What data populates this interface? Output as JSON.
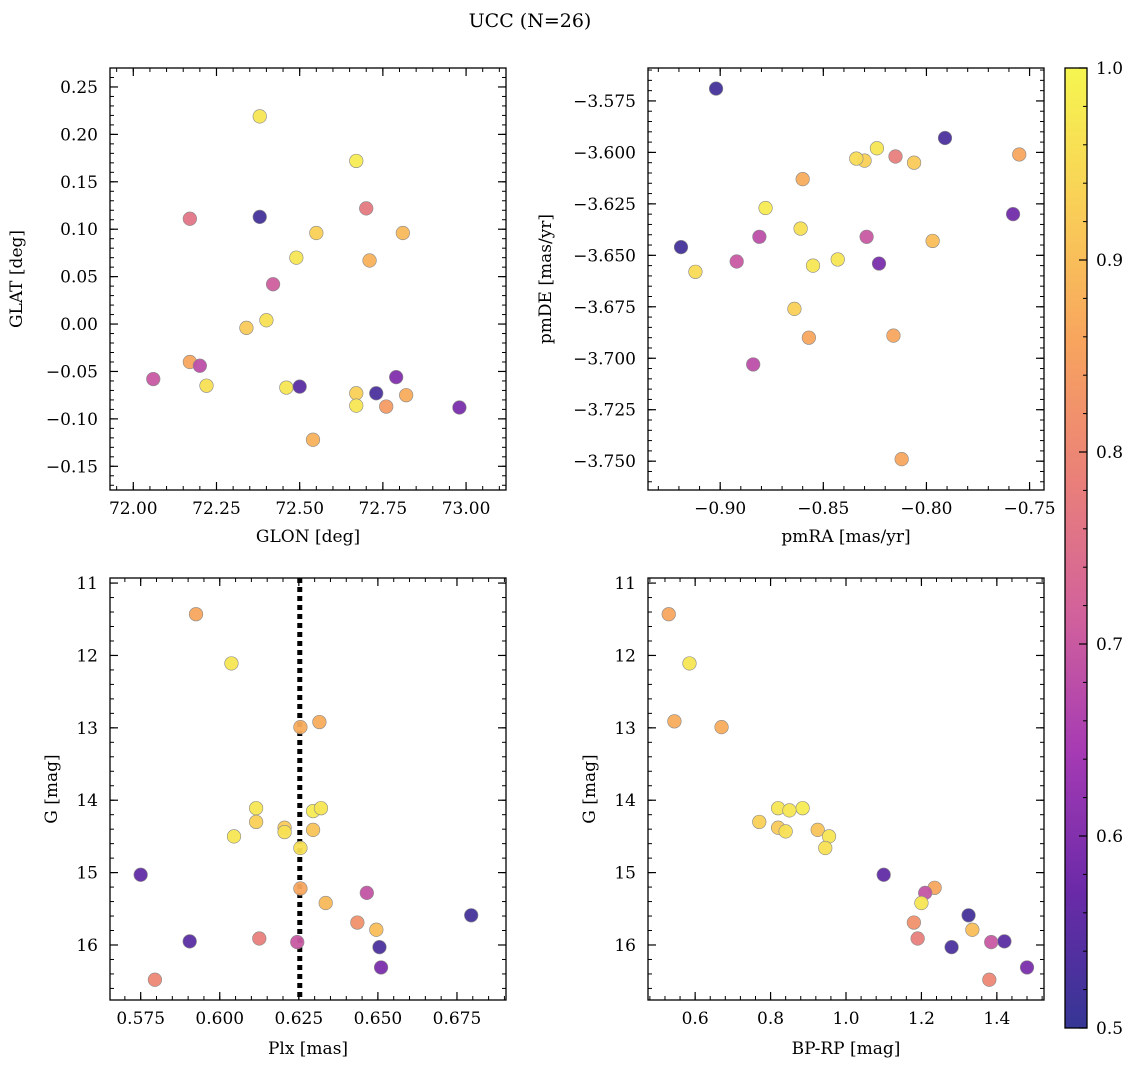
{
  "title": "UCC (N=26)",
  "colorbar": {
    "range": [
      0.5,
      1.0
    ],
    "ticks": [
      0.5,
      0.6,
      0.7,
      0.8,
      0.9,
      1.0
    ],
    "tick_labels": [
      "0.5",
      "0.6",
      "0.7",
      "0.8",
      "0.9",
      "1.0"
    ],
    "colormap": "plasma",
    "stops": [
      "#353695",
      "#6b2aa8",
      "#a53ab4",
      "#d1619c",
      "#ea8079",
      "#f8a45e",
      "#f9cf57",
      "#f6f650"
    ]
  },
  "chart_data": [
    {
      "type": "scatter",
      "name": "glon_glat",
      "xlabel": "GLON [deg]",
      "ylabel": "GLAT [deg]",
      "xlim": [
        71.93,
        73.12
      ],
      "ylim": [
        -0.175,
        0.27
      ],
      "y_inverted": false,
      "xticks": [
        72.0,
        72.25,
        72.5,
        72.75,
        73.0
      ],
      "xtick_labels": [
        "72.00",
        "72.25",
        "72.50",
        "72.75",
        "73.00"
      ],
      "yticks": [
        -0.15,
        -0.1,
        -0.05,
        0.0,
        0.05,
        0.1,
        0.15,
        0.2,
        0.25
      ],
      "ytick_labels": [
        "−0.15",
        "−0.10",
        "−0.05",
        "0.00",
        "0.05",
        "0.10",
        "0.15",
        "0.20",
        "0.25"
      ],
      "points": [
        {
          "x": 72.38,
          "y": 0.219,
          "c": 0.97
        },
        {
          "x": 72.67,
          "y": 0.172,
          "c": 0.98
        },
        {
          "x": 72.17,
          "y": 0.111,
          "c": 0.76
        },
        {
          "x": 72.38,
          "y": 0.113,
          "c": 0.52
        },
        {
          "x": 72.7,
          "y": 0.122,
          "c": 0.77
        },
        {
          "x": 72.55,
          "y": 0.096,
          "c": 0.93
        },
        {
          "x": 72.81,
          "y": 0.096,
          "c": 0.89
        },
        {
          "x": 72.49,
          "y": 0.07,
          "c": 0.97
        },
        {
          "x": 72.71,
          "y": 0.067,
          "c": 0.88
        },
        {
          "x": 72.42,
          "y": 0.042,
          "c": 0.71
        },
        {
          "x": 72.4,
          "y": 0.004,
          "c": 0.96
        },
        {
          "x": 72.34,
          "y": -0.004,
          "c": 0.92
        },
        {
          "x": 72.06,
          "y": -0.058,
          "c": 0.7
        },
        {
          "x": 72.17,
          "y": -0.04,
          "c": 0.86
        },
        {
          "x": 72.2,
          "y": -0.044,
          "c": 0.68
        },
        {
          "x": 72.22,
          "y": -0.065,
          "c": 0.96
        },
        {
          "x": 72.46,
          "y": -0.067,
          "c": 0.97
        },
        {
          "x": 72.5,
          "y": -0.066,
          "c": 0.55
        },
        {
          "x": 72.67,
          "y": -0.073,
          "c": 0.93
        },
        {
          "x": 72.73,
          "y": -0.073,
          "c": 0.53
        },
        {
          "x": 72.79,
          "y": -0.056,
          "c": 0.6
        },
        {
          "x": 72.82,
          "y": -0.075,
          "c": 0.87
        },
        {
          "x": 72.67,
          "y": -0.086,
          "c": 0.97
        },
        {
          "x": 72.76,
          "y": -0.087,
          "c": 0.84
        },
        {
          "x": 72.98,
          "y": -0.088,
          "c": 0.59
        },
        {
          "x": 72.54,
          "y": -0.122,
          "c": 0.88
        }
      ]
    },
    {
      "type": "scatter",
      "name": "pmra_pmde",
      "xlabel": "pmRA [mas/yr]",
      "ylabel": "pmDE [mas/yr]",
      "xlim": [
        -0.935,
        -0.743
      ],
      "ylim": [
        -3.764,
        -3.559
      ],
      "y_inverted": false,
      "xticks": [
        -0.9,
        -0.85,
        -0.8,
        -0.75
      ],
      "xtick_labels": [
        "−0.90",
        "−0.85",
        "−0.80",
        "−0.75"
      ],
      "yticks": [
        -3.75,
        -3.725,
        -3.7,
        -3.675,
        -3.65,
        -3.625,
        -3.6,
        -3.575
      ],
      "ytick_labels": [
        "−3.750",
        "−3.725",
        "−3.700",
        "−3.675",
        "−3.650",
        "−3.625",
        "−3.600",
        "−3.575"
      ],
      "points": [
        {
          "x": -0.902,
          "y": -3.569,
          "c": 0.52
        },
        {
          "x": -0.791,
          "y": -3.593,
          "c": 0.53
        },
        {
          "x": -0.755,
          "y": -3.601,
          "c": 0.86
        },
        {
          "x": -0.824,
          "y": -3.598,
          "c": 0.97
        },
        {
          "x": -0.83,
          "y": -3.604,
          "c": 0.93
        },
        {
          "x": -0.834,
          "y": -3.603,
          "c": 0.95
        },
        {
          "x": -0.815,
          "y": -3.602,
          "c": 0.78
        },
        {
          "x": -0.806,
          "y": -3.605,
          "c": 0.92
        },
        {
          "x": -0.86,
          "y": -3.613,
          "c": 0.87
        },
        {
          "x": -0.878,
          "y": -3.627,
          "c": 0.98
        },
        {
          "x": -0.758,
          "y": -3.63,
          "c": 0.58
        },
        {
          "x": -0.861,
          "y": -3.637,
          "c": 0.96
        },
        {
          "x": -0.881,
          "y": -3.641,
          "c": 0.68
        },
        {
          "x": -0.829,
          "y": -3.641,
          "c": 0.7
        },
        {
          "x": -0.797,
          "y": -3.643,
          "c": 0.9
        },
        {
          "x": -0.919,
          "y": -3.646,
          "c": 0.52
        },
        {
          "x": -0.892,
          "y": -3.653,
          "c": 0.7
        },
        {
          "x": -0.843,
          "y": -3.652,
          "c": 0.97
        },
        {
          "x": -0.823,
          "y": -3.654,
          "c": 0.59
        },
        {
          "x": -0.855,
          "y": -3.655,
          "c": 0.97
        },
        {
          "x": -0.912,
          "y": -3.658,
          "c": 0.95
        },
        {
          "x": -0.864,
          "y": -3.676,
          "c": 0.93
        },
        {
          "x": -0.857,
          "y": -3.69,
          "c": 0.86
        },
        {
          "x": -0.816,
          "y": -3.689,
          "c": 0.86
        },
        {
          "x": -0.884,
          "y": -3.703,
          "c": 0.68
        },
        {
          "x": -0.812,
          "y": -3.749,
          "c": 0.86
        }
      ]
    },
    {
      "type": "scatter",
      "name": "plx_g",
      "xlabel": "Plx [mas]",
      "ylabel": "G [mag]",
      "xlim": [
        0.5653,
        0.6905
      ],
      "ylim": [
        16.76,
        10.93
      ],
      "y_inverted": true,
      "vline": 0.6253,
      "xticks": [
        0.575,
        0.6,
        0.625,
        0.65,
        0.675
      ],
      "xtick_labels": [
        "0.575",
        "0.600",
        "0.625",
        "0.650",
        "0.675"
      ],
      "yticks": [
        11,
        12,
        13,
        14,
        15,
        16
      ],
      "ytick_labels": [
        "11",
        "12",
        "13",
        "14",
        "15",
        "16"
      ],
      "points": [
        {
          "x": 0.5925,
          "y": 11.43,
          "c": 0.86
        },
        {
          "x": 0.6037,
          "y": 12.11,
          "c": 0.97
        },
        {
          "x": 0.6255,
          "y": 12.99,
          "c": 0.87
        },
        {
          "x": 0.6315,
          "y": 12.92,
          "c": 0.87
        },
        {
          "x": 0.6115,
          "y": 14.11,
          "c": 0.97
        },
        {
          "x": 0.6115,
          "y": 14.3,
          "c": 0.93
        },
        {
          "x": 0.6045,
          "y": 14.5,
          "c": 0.97
        },
        {
          "x": 0.6205,
          "y": 14.38,
          "c": 0.92
        },
        {
          "x": 0.6205,
          "y": 14.44,
          "c": 0.96
        },
        {
          "x": 0.6295,
          "y": 14.15,
          "c": 0.98
        },
        {
          "x": 0.632,
          "y": 14.11,
          "c": 0.97
        },
        {
          "x": 0.6295,
          "y": 14.41,
          "c": 0.91
        },
        {
          "x": 0.6255,
          "y": 14.66,
          "c": 0.96
        },
        {
          "x": 0.575,
          "y": 15.03,
          "c": 0.56
        },
        {
          "x": 0.6255,
          "y": 15.22,
          "c": 0.86
        },
        {
          "x": 0.6465,
          "y": 15.28,
          "c": 0.69
        },
        {
          "x": 0.6335,
          "y": 15.42,
          "c": 0.89
        },
        {
          "x": 0.6435,
          "y": 15.69,
          "c": 0.82
        },
        {
          "x": 0.6495,
          "y": 15.79,
          "c": 0.9
        },
        {
          "x": 0.6795,
          "y": 15.59,
          "c": 0.52
        },
        {
          "x": 0.5905,
          "y": 15.95,
          "c": 0.55
        },
        {
          "x": 0.6125,
          "y": 15.91,
          "c": 0.78
        },
        {
          "x": 0.6245,
          "y": 15.96,
          "c": 0.7
        },
        {
          "x": 0.6505,
          "y": 16.03,
          "c": 0.53
        },
        {
          "x": 0.651,
          "y": 16.31,
          "c": 0.59
        },
        {
          "x": 0.5795,
          "y": 16.48,
          "c": 0.8
        }
      ]
    },
    {
      "type": "scatter",
      "name": "bprp_g",
      "xlabel": "BP-RP [mag]",
      "ylabel": "G [mag]",
      "xlim": [
        0.475,
        1.525
      ],
      "ylim": [
        16.76,
        10.93
      ],
      "y_inverted": true,
      "xticks": [
        0.6,
        0.8,
        1.0,
        1.2,
        1.4
      ],
      "xtick_labels": [
        "0.6",
        "0.8",
        "1.0",
        "1.2",
        "1.4"
      ],
      "yticks": [
        11,
        12,
        13,
        14,
        15,
        16
      ],
      "ytick_labels": [
        "11",
        "12",
        "13",
        "14",
        "15",
        "16"
      ],
      "points": [
        {
          "x": 0.53,
          "y": 11.43,
          "c": 0.86
        },
        {
          "x": 0.585,
          "y": 12.11,
          "c": 0.97
        },
        {
          "x": 0.545,
          "y": 12.91,
          "c": 0.87
        },
        {
          "x": 0.67,
          "y": 12.99,
          "c": 0.87
        },
        {
          "x": 0.82,
          "y": 14.11,
          "c": 0.97
        },
        {
          "x": 0.885,
          "y": 14.11,
          "c": 0.98
        },
        {
          "x": 0.85,
          "y": 14.14,
          "c": 0.97
        },
        {
          "x": 0.77,
          "y": 14.3,
          "c": 0.93
        },
        {
          "x": 0.82,
          "y": 14.38,
          "c": 0.92
        },
        {
          "x": 0.84,
          "y": 14.43,
          "c": 0.96
        },
        {
          "x": 0.925,
          "y": 14.41,
          "c": 0.91
        },
        {
          "x": 0.955,
          "y": 14.5,
          "c": 0.97
        },
        {
          "x": 0.945,
          "y": 14.66,
          "c": 0.96
        },
        {
          "x": 1.1,
          "y": 15.03,
          "c": 0.56
        },
        {
          "x": 1.235,
          "y": 15.21,
          "c": 0.86
        },
        {
          "x": 1.21,
          "y": 15.28,
          "c": 0.69
        },
        {
          "x": 1.2,
          "y": 15.42,
          "c": 0.97
        },
        {
          "x": 1.325,
          "y": 15.59,
          "c": 0.52
        },
        {
          "x": 1.18,
          "y": 15.69,
          "c": 0.82
        },
        {
          "x": 1.335,
          "y": 15.79,
          "c": 0.9
        },
        {
          "x": 1.19,
          "y": 15.91,
          "c": 0.78
        },
        {
          "x": 1.385,
          "y": 15.96,
          "c": 0.7
        },
        {
          "x": 1.42,
          "y": 15.95,
          "c": 0.55
        },
        {
          "x": 1.28,
          "y": 16.03,
          "c": 0.53
        },
        {
          "x": 1.48,
          "y": 16.31,
          "c": 0.59
        },
        {
          "x": 1.38,
          "y": 16.48,
          "c": 0.8
        }
      ]
    }
  ]
}
